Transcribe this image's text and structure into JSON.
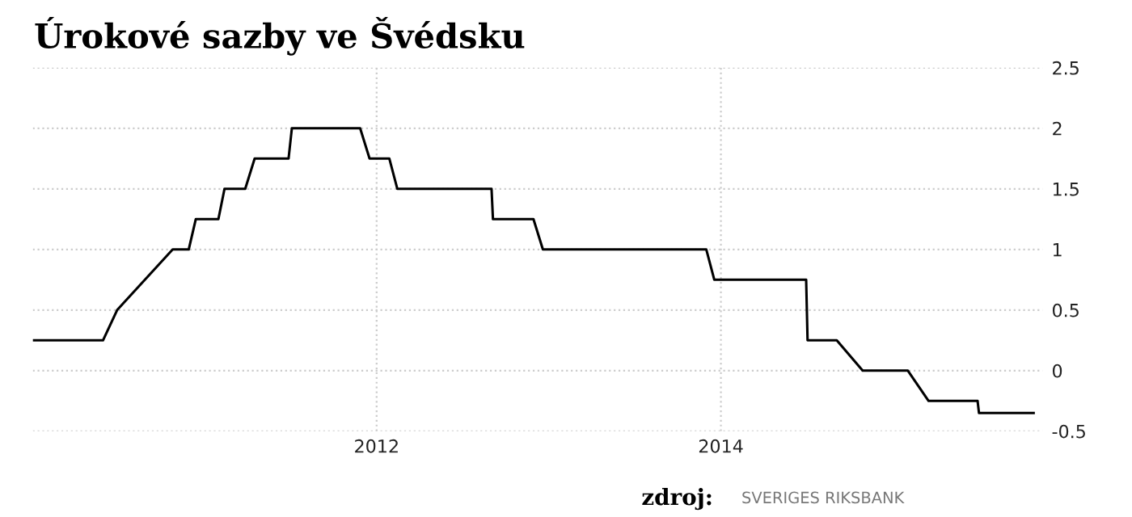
{
  "chart_data": {
    "type": "step",
    "title": "Úrokové sazby ve Švédsku",
    "x": [
      "2010-01-03",
      "2010-05-30",
      "2010-06-29",
      "2010-10-25",
      "2010-11-28",
      "2010-12-13",
      "2011-01-30",
      "2011-02-12",
      "2011-03-28",
      "2011-04-17",
      "2011-06-28",
      "2011-07-05",
      "2011-11-27",
      "2011-12-17",
      "2012-01-28",
      "2012-02-14",
      "2012-09-01",
      "2012-09-04",
      "2012-11-29",
      "2012-12-19",
      "2013-12-01",
      "2013-12-18",
      "2014-07-01",
      "2014-07-04",
      "2014-09-04",
      "2014-10-29",
      "2015-02-02",
      "2015-03-18",
      "2015-06-30",
      "2015-07-03",
      "2015-10-27"
    ],
    "series": [
      {
        "color": "#000000",
        "values": [
          0.25,
          0.25,
          0.5,
          1.0,
          1.0,
          1.25,
          1.25,
          1.5,
          1.5,
          1.75,
          1.75,
          2.0,
          2.0,
          1.75,
          1.75,
          1.5,
          1.5,
          1.25,
          1.25,
          1.0,
          1.0,
          0.75,
          0.75,
          0.25,
          0.25,
          0.0,
          0.0,
          -0.25,
          -0.25,
          -0.35,
          -0.35
        ]
      }
    ],
    "xlim": [
      "2010-01-01",
      "2015-11-15"
    ],
    "xticks": [
      {
        "value": "2012-01-01",
        "label": "2012"
      },
      {
        "value": "2014-01-01",
        "label": "2014"
      }
    ],
    "ylim": [
      -0.5,
      2.5
    ],
    "yticks": [
      -0.5,
      0,
      0.5,
      1,
      1.5,
      2,
      2.5
    ],
    "grid": true,
    "line_style": "solid",
    "legend": false,
    "annotations": [
      "zdroj:",
      "SVERIGES RIKSBANK"
    ]
  }
}
